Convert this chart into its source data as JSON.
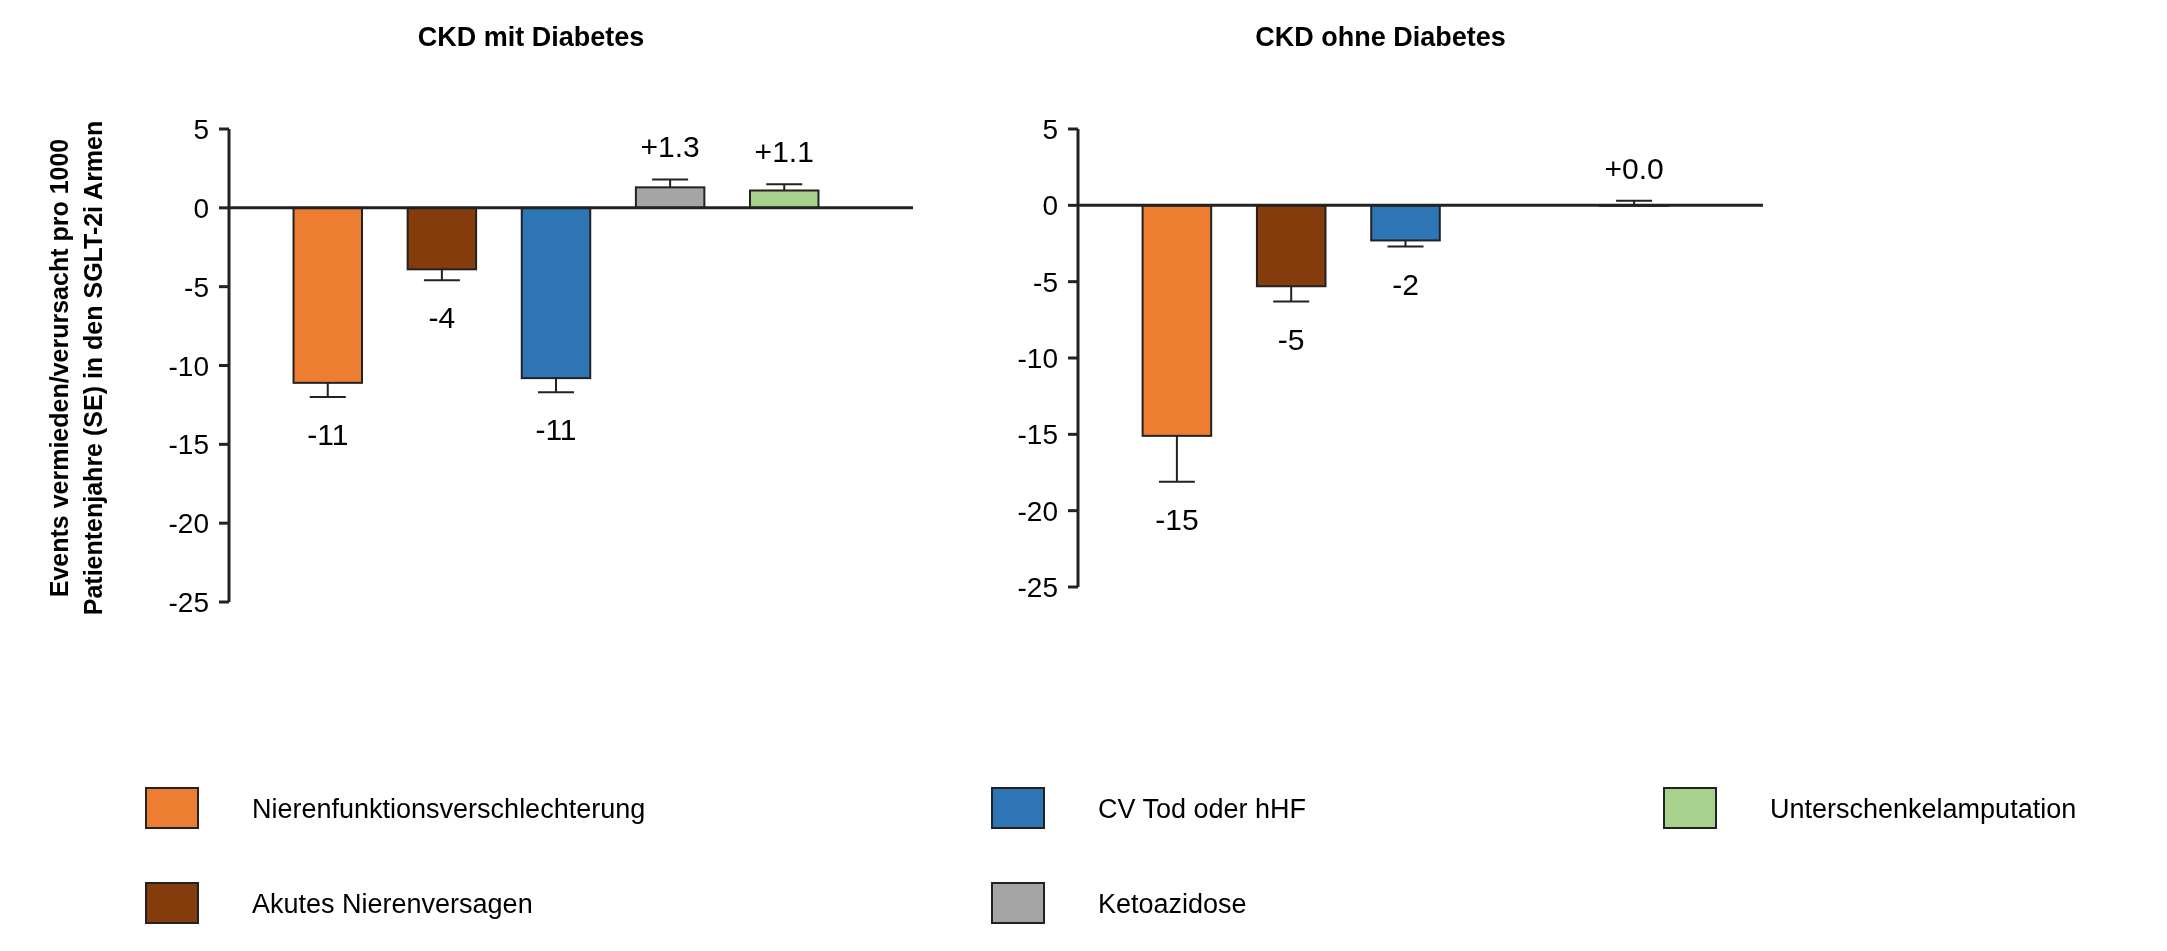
{
  "chart_data": [
    {
      "type": "bar",
      "title": "CKD mit Diabetes",
      "ylabel": "Events vermieden/verursacht pro 1000 Patientenjahre (SE) in den SGLT-2i Armen",
      "categories": [
        null
      ],
      "series": [
        {
          "name": "Nierenfunktionsverschlechterung",
          "color": "#ed7d31",
          "values": [
            -11.1
          ],
          "errors": [
            0.9
          ],
          "value_labels": [
            "-11"
          ]
        },
        {
          "name": "Akutes Nierenversagen",
          "color": "#843c0c",
          "values": [
            -3.9
          ],
          "errors": [
            0.7
          ],
          "value_labels": [
            "-4"
          ]
        },
        {
          "name": "CV Tod oder hHF",
          "color": "#2e75b6",
          "values": [
            -10.8
          ],
          "errors": [
            0.9
          ],
          "value_labels": [
            "-11"
          ]
        },
        {
          "name": "Ketoazidose",
          "color": "#a5a5a5",
          "values": [
            1.3
          ],
          "errors": [
            0.5
          ],
          "value_labels": [
            "+1.3"
          ]
        },
        {
          "name": "Unterschenkelamputation",
          "color": "#a9d18e",
          "values": [
            1.1
          ],
          "errors": [
            0.4
          ],
          "value_labels": [
            "+1.1"
          ]
        }
      ],
      "ylim": [
        -25,
        5
      ],
      "yticks": [
        -25,
        -20,
        -15,
        -10,
        -5,
        0,
        5
      ],
      "legend": "bottom"
    },
    {
      "type": "bar",
      "title": "CKD ohne Diabetes",
      "categories": [
        null
      ],
      "series": [
        {
          "color": "#ed7d31",
          "values": [
            -15.1
          ],
          "errors": [
            3.0
          ],
          "value_labels": [
            "-15"
          ]
        },
        {
          "color": "#843c0c",
          "values": [
            -5.3
          ],
          "errors": [
            1.0
          ],
          "value_labels": [
            "-5"
          ]
        },
        {
          "color": "#2e75b6",
          "values": [
            -2.3
          ],
          "errors": [
            0.4
          ],
          "value_labels": [
            "-2"
          ]
        },
        {
          "values": [
            null
          ],
          "errors": [
            null
          ],
          "value_labels": [
            null
          ]
        },
        {
          "color": "#a9d18e",
          "values": [
            0.0
          ],
          "errors": [
            0.3
          ],
          "value_labels": [
            "+0.0"
          ]
        }
      ],
      "ylim": [
        -25,
        5
      ],
      "yticks": [
        -25,
        -20,
        -15,
        -10,
        -5,
        0,
        5
      ]
    }
  ]
}
